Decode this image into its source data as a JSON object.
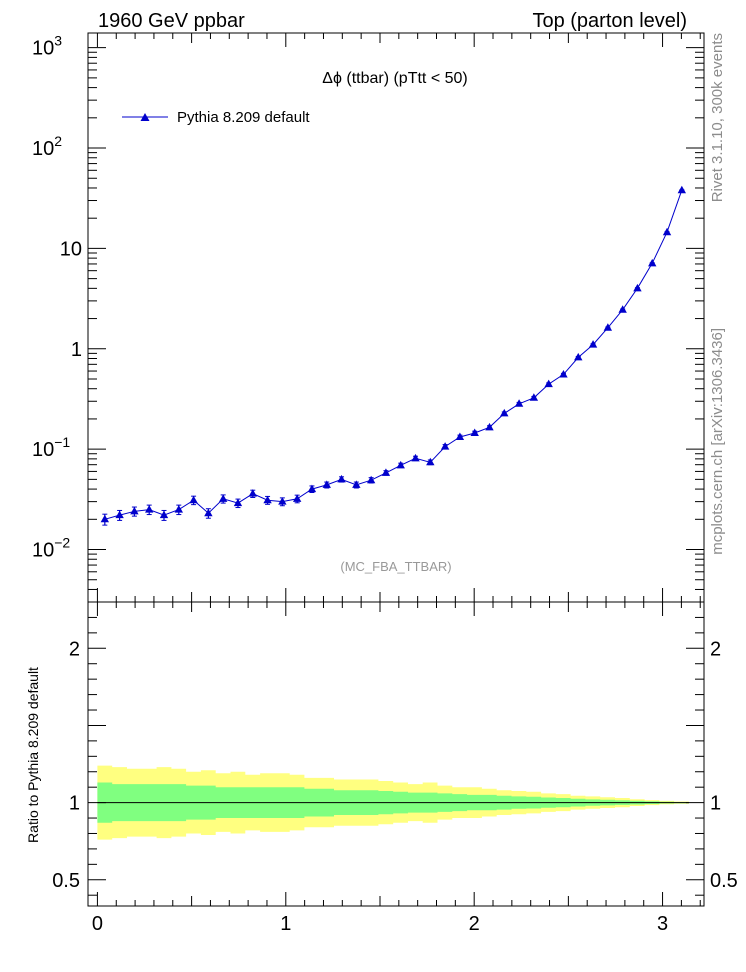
{
  "header": {
    "left": "1960 GeV ppbar",
    "right": "Top (parton level)"
  },
  "side_labels": {
    "rivet": "Rivet 3.1.10,  300k events",
    "mcplots": "mcplots.cern.ch [arXiv:1306.3436]"
  },
  "chart_data": [
    {
      "type": "line",
      "title": "Δϕ (ttbar) (pTtt < 50)",
      "watermark": "(MC_FBA_TTBAR)",
      "xlim": [
        -0.05,
        3.22
      ],
      "ylim": [
        0.003,
        1400
      ],
      "yscale": "log",
      "y_ticks": [
        {
          "v": 0.01,
          "label": "10",
          "sup": "−2"
        },
        {
          "v": 0.1,
          "label": "10",
          "sup": "−1"
        },
        {
          "v": 1,
          "label": "1",
          "sup": ""
        },
        {
          "v": 10,
          "label": "10",
          "sup": ""
        },
        {
          "v": 100,
          "label": "10",
          "sup": "2"
        },
        {
          "v": 1000,
          "label": "10",
          "sup": "3"
        }
      ],
      "legend_position": "top-left",
      "color": "#0000cc",
      "series": [
        {
          "name": "Pythia 8.209 default",
          "x": [
            0.0393,
            0.1178,
            0.1963,
            0.2749,
            0.3534,
            0.432,
            0.5105,
            0.589,
            0.6676,
            0.7461,
            0.8247,
            0.9032,
            0.9817,
            1.0603,
            1.1388,
            1.2174,
            1.2959,
            1.3744,
            1.453,
            1.5315,
            1.6101,
            1.6886,
            1.7671,
            1.8457,
            1.9242,
            2.0028,
            2.0813,
            2.1598,
            2.2384,
            2.3169,
            2.3955,
            2.474,
            2.5525,
            2.6311,
            2.7096,
            2.7882,
            2.8667,
            2.9452,
            3.0238,
            3.1023
          ],
          "y": [
            0.02,
            0.022,
            0.024,
            0.025,
            0.022,
            0.025,
            0.031,
            0.023,
            0.032,
            0.029,
            0.036,
            0.031,
            0.03,
            0.032,
            0.04,
            0.044,
            0.05,
            0.044,
            0.049,
            0.058,
            0.069,
            0.081,
            0.074,
            0.106,
            0.132,
            0.145,
            0.165,
            0.227,
            0.283,
            0.325,
            0.445,
            0.555,
            0.82,
            1.1,
            1.62,
            2.45,
            4.0,
            7.1,
            14.5,
            38.0
          ],
          "yerr": [
            0.0025,
            0.0025,
            0.0025,
            0.0027,
            0.0025,
            0.0027,
            0.003,
            0.0025,
            0.003,
            0.0028,
            0.003,
            0.0028,
            0.0027,
            0.0028,
            0.003,
            0.003,
            0.003,
            0.003,
            0.003,
            0.003,
            0.0035,
            0.004,
            0.004,
            0.005,
            0.006,
            0.006,
            0.006,
            0.008,
            0.009,
            0.01,
            0.012,
            0.014,
            0.018,
            0.022,
            0.028,
            0.04,
            0.06,
            0.09,
            0.15,
            0.3
          ]
        }
      ]
    },
    {
      "type": "area",
      "ylabel": "Ratio to Pythia 8.209 default",
      "xlim": [
        -0.05,
        3.22
      ],
      "ylim": [
        0.33,
        2.3
      ],
      "x_ticks": [
        "0",
        "1",
        "2",
        "3"
      ],
      "y_ticks": [
        "0.5",
        "1",
        "2"
      ],
      "reference": 1,
      "band_colors": {
        "outer": "#ffff80",
        "inner": "#80ff80",
        "line": "#000000"
      },
      "bins": [
        0.0,
        0.0785,
        0.157,
        0.2355,
        0.314,
        0.3925,
        0.471,
        0.5495,
        0.628,
        0.7065,
        0.785,
        0.8635,
        0.942,
        1.0205,
        1.099,
        1.1775,
        1.256,
        1.3345,
        1.413,
        1.4915,
        1.57,
        1.6485,
        1.727,
        1.8055,
        1.884,
        1.9625,
        2.041,
        2.1195,
        2.198,
        2.2765,
        2.355,
        2.4335,
        2.512,
        2.5905,
        2.669,
        2.7475,
        2.826,
        2.9045,
        2.983,
        3.0615,
        3.14
      ],
      "outer_band": [
        0.24,
        0.23,
        0.22,
        0.22,
        0.23,
        0.22,
        0.2,
        0.21,
        0.19,
        0.2,
        0.18,
        0.19,
        0.19,
        0.18,
        0.16,
        0.16,
        0.15,
        0.15,
        0.15,
        0.14,
        0.13,
        0.12,
        0.13,
        0.11,
        0.1,
        0.1,
        0.09,
        0.08,
        0.075,
        0.07,
        0.06,
        0.055,
        0.045,
        0.04,
        0.035,
        0.03,
        0.022,
        0.016,
        0.011,
        0.007
      ],
      "inner_band": [
        0.13,
        0.12,
        0.12,
        0.12,
        0.12,
        0.12,
        0.11,
        0.11,
        0.1,
        0.1,
        0.1,
        0.1,
        0.1,
        0.1,
        0.09,
        0.09,
        0.08,
        0.08,
        0.08,
        0.075,
        0.07,
        0.065,
        0.065,
        0.06,
        0.055,
        0.05,
        0.05,
        0.045,
        0.04,
        0.038,
        0.033,
        0.03,
        0.025,
        0.021,
        0.018,
        0.015,
        0.012,
        0.009,
        0.006,
        0.004
      ]
    }
  ]
}
